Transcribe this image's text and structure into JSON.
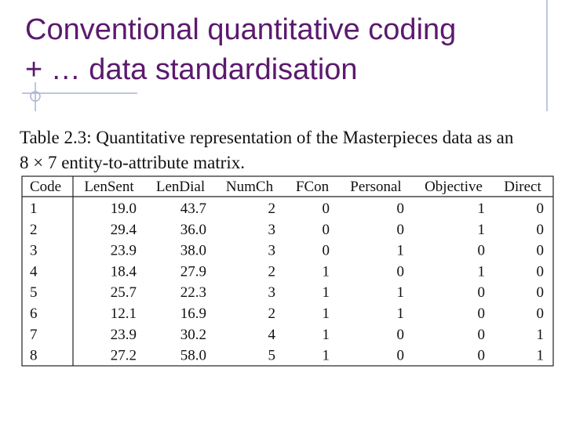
{
  "header": {
    "title_lines": [
      "Conventional quantitative coding",
      "+ … data standardisation"
    ]
  },
  "table": {
    "caption_lines": [
      "Table 2.3: Quantitative representation of the Masterpieces data as an",
      "8 × 7 entity-to-attribute matrix."
    ],
    "columns": [
      "Code",
      "LenSent",
      "LenDial",
      "NumCh",
      "FCon",
      "Personal",
      "Objective",
      "Direct"
    ],
    "rows": [
      [
        "1",
        "19.0",
        "43.7",
        "2",
        "0",
        "0",
        "1",
        "0"
      ],
      [
        "2",
        "29.4",
        "36.0",
        "3",
        "0",
        "0",
        "1",
        "0"
      ],
      [
        "3",
        "23.9",
        "38.0",
        "3",
        "0",
        "1",
        "0",
        "0"
      ],
      [
        "4",
        "18.4",
        "27.9",
        "2",
        "1",
        "0",
        "1",
        "0"
      ],
      [
        "5",
        "25.7",
        "22.3",
        "3",
        "1",
        "1",
        "0",
        "0"
      ],
      [
        "6",
        "12.1",
        "16.9",
        "2",
        "1",
        "1",
        "0",
        "0"
      ],
      [
        "7",
        "23.9",
        "30.2",
        "4",
        "1",
        "0",
        "0",
        "1"
      ],
      [
        "8",
        "27.2",
        "58.0",
        "5",
        "1",
        "0",
        "0",
        "1"
      ]
    ]
  }
}
